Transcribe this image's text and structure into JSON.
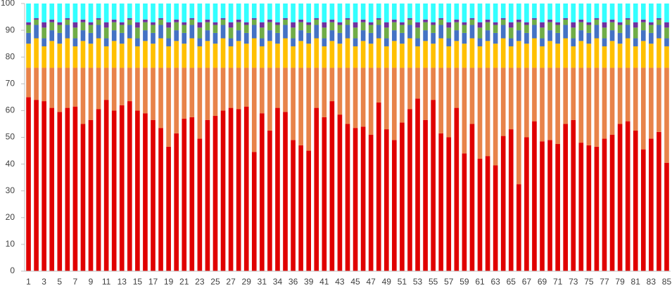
{
  "chart_data": {
    "type": "stacked-bar",
    "categories": [
      "1",
      null,
      "3",
      null,
      "5",
      null,
      "7",
      null,
      "9",
      null,
      "11",
      null,
      "13",
      null,
      "15",
      null,
      "17",
      null,
      "19",
      null,
      "21",
      null,
      "23",
      null,
      "25",
      null,
      "27",
      null,
      "29",
      null,
      "31",
      null,
      "34",
      null,
      "36",
      null,
      "39",
      null,
      "41",
      null,
      "43",
      null,
      "45",
      null,
      "47",
      null,
      "49",
      null,
      "51",
      null,
      "53",
      null,
      "55",
      null,
      "57",
      null,
      "59",
      null,
      "61",
      null,
      "63",
      null,
      "65",
      null,
      "67",
      null,
      "69",
      null,
      "71",
      null,
      "73",
      null,
      "75",
      null,
      "77",
      null,
      "79",
      null,
      "81",
      null,
      "83",
      null,
      "85"
    ],
    "series": [
      {
        "color": "#e00000",
        "values": [
          65,
          64,
          63.5,
          61,
          59.5,
          61,
          61.5,
          55,
          56.5,
          60.5,
          64,
          60,
          62,
          63.5,
          60,
          59,
          56.5,
          53.5,
          46.5,
          51.5,
          57,
          57.5,
          49.5,
          56.5,
          58,
          60,
          61,
          60.5,
          61.5,
          44.5,
          59,
          52.5,
          61,
          59.5,
          49,
          47,
          45,
          61,
          57.5,
          63.5,
          58.5,
          55,
          53.5,
          54,
          51,
          63,
          53,
          49,
          55.5,
          60.5,
          64.5,
          56.5,
          64,
          51.5,
          50,
          61,
          44,
          55,
          42,
          43,
          39.5,
          50.5,
          53,
          32.5,
          50,
          56,
          48.5,
          49,
          47.5,
          55,
          56.5,
          48,
          47,
          46.5,
          49.5,
          51,
          55,
          56,
          52.5,
          45.5,
          49.5,
          52,
          40.5
        ]
      },
      {
        "color": "#e8834a",
        "values": [
          11,
          12,
          12.5,
          15,
          16.5,
          15,
          14.5,
          21,
          19.5,
          15.5,
          12,
          16,
          14,
          12.5,
          16,
          17,
          19.5,
          22.5,
          29.5,
          24.5,
          19,
          18.5,
          26.5,
          19.5,
          18,
          16,
          15,
          15.5,
          14.5,
          31.5,
          17,
          23.5,
          15,
          16.5,
          27,
          29,
          31,
          15,
          18.5,
          12.5,
          17.5,
          21,
          22.5,
          22,
          25,
          13,
          23,
          27,
          20.5,
          15.5,
          11.5,
          19.5,
          12,
          24.5,
          26,
          15,
          32,
          21,
          34,
          33,
          36.5,
          25.5,
          23,
          43.5,
          26,
          20,
          27.5,
          27,
          28.5,
          21,
          19.5,
          28,
          29,
          29.5,
          26.5,
          25,
          21,
          20,
          23.5,
          30.5,
          26.5,
          24,
          35.5
        ]
      },
      {
        "color": "#ffc000",
        "values": [
          9,
          11,
          8,
          10,
          9,
          11,
          8,
          10,
          9,
          11,
          8,
          10,
          9,
          11,
          8,
          10,
          9,
          11,
          8,
          10,
          9,
          11,
          8,
          10,
          9,
          11,
          8,
          10,
          9,
          11,
          8,
          10,
          9,
          11,
          8,
          10,
          9,
          11,
          8,
          10,
          9,
          11,
          8,
          10,
          9,
          11,
          8,
          10,
          9,
          11,
          8,
          10,
          9,
          11,
          8,
          10,
          9,
          11,
          8,
          10,
          9,
          11,
          8,
          10,
          9,
          11,
          8,
          10,
          9,
          11,
          8,
          10,
          9,
          11,
          8,
          10,
          9,
          11,
          8,
          10,
          9,
          11,
          8
        ]
      },
      {
        "color": "#4472c4",
        "values": [
          4,
          5,
          3,
          4,
          4,
          5,
          3,
          4,
          4,
          5,
          3,
          4,
          4,
          5,
          3,
          4,
          4,
          5,
          3,
          4,
          4,
          5,
          3,
          4,
          4,
          5,
          3,
          4,
          4,
          5,
          3,
          4,
          4,
          5,
          3,
          4,
          4,
          5,
          3,
          4,
          4,
          5,
          3,
          4,
          4,
          5,
          3,
          4,
          4,
          5,
          3,
          4,
          4,
          5,
          3,
          4,
          4,
          5,
          3,
          4,
          4,
          5,
          3,
          4,
          4,
          5,
          3,
          4,
          4,
          5,
          3,
          4,
          4,
          5,
          3,
          4,
          4,
          5,
          3,
          4,
          4,
          5,
          3
        ]
      },
      {
        "color": "#70ad47",
        "values": [
          3,
          2,
          4,
          3,
          3,
          2,
          4,
          3,
          3,
          2,
          4,
          3,
          3,
          2,
          4,
          3,
          3,
          2,
          4,
          3,
          3,
          2,
          4,
          3,
          3,
          2,
          4,
          3,
          3,
          2,
          4,
          3,
          3,
          2,
          4,
          3,
          3,
          2,
          4,
          3,
          3,
          2,
          4,
          3,
          3,
          2,
          4,
          3,
          3,
          2,
          4,
          3,
          3,
          2,
          4,
          3,
          3,
          2,
          4,
          3,
          3,
          2,
          4,
          3,
          3,
          2,
          4,
          3,
          3,
          2,
          4,
          3,
          3,
          2,
          4,
          3,
          3,
          2,
          4,
          3,
          3,
          2,
          4
        ]
      },
      {
        "color": "#7030a0",
        "values": [
          1,
          0.5,
          2,
          1,
          1,
          0.5,
          2,
          1,
          1,
          0.5,
          2,
          1,
          1,
          0.5,
          2,
          1,
          1,
          0.5,
          2,
          1,
          1,
          0.5,
          2,
          1,
          1,
          0.5,
          2,
          1,
          1,
          0.5,
          2,
          1,
          1,
          0.5,
          2,
          1,
          1,
          0.5,
          2,
          1,
          1,
          0.5,
          2,
          1,
          1,
          0.5,
          2,
          1,
          1,
          0.5,
          2,
          1,
          1,
          0.5,
          2,
          1,
          1,
          0.5,
          2,
          1,
          1,
          0.5,
          2,
          1,
          1,
          0.5,
          2,
          1,
          1,
          0.5,
          2,
          1,
          1,
          0.5,
          2,
          1,
          1,
          0.5,
          2,
          1,
          1,
          0.5,
          2
        ]
      },
      {
        "color": "#33ffff",
        "values": [
          7,
          5.5,
          7,
          6,
          7,
          5.5,
          7,
          6,
          7,
          5.5,
          7,
          6,
          7,
          5.5,
          7,
          6,
          7,
          5.5,
          7,
          6,
          7,
          5.5,
          7,
          6,
          7,
          5.5,
          7,
          6,
          7,
          5.5,
          7,
          6,
          7,
          5.5,
          7,
          6,
          7,
          5.5,
          7,
          6,
          7,
          5.5,
          7,
          6,
          7,
          5.5,
          7,
          6,
          7,
          5.5,
          7,
          6,
          7,
          5.5,
          7,
          6,
          7,
          5.5,
          7,
          6,
          7,
          5.5,
          7,
          6,
          7,
          5.5,
          7,
          6,
          7,
          5.5,
          7,
          6,
          7,
          5.5,
          7,
          6,
          7,
          5.5,
          7,
          6,
          7,
          5.5,
          7
        ]
      }
    ],
    "ylim": [
      0,
      100
    ],
    "yticks": [
      0,
      10,
      20,
      30,
      40,
      50,
      60,
      70,
      80,
      90,
      100
    ]
  }
}
